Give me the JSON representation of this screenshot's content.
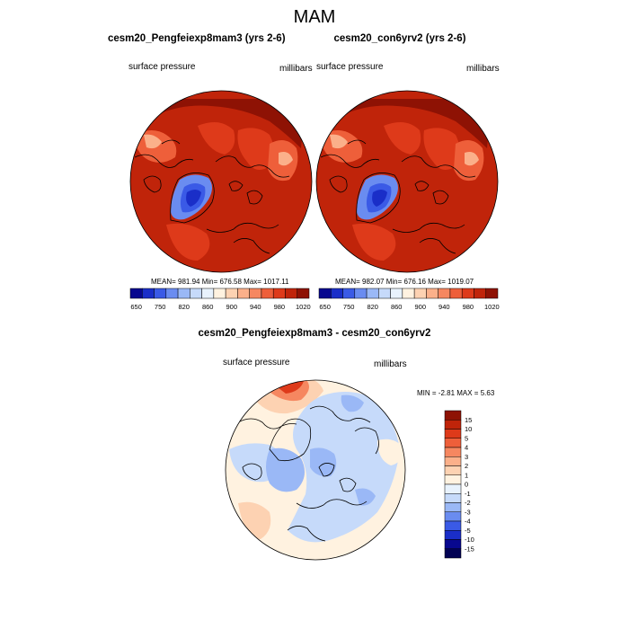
{
  "figure": {
    "title": "MAM",
    "panels": [
      {
        "title": "cesm20_Pengfeiexp8mam3 (yrs 2-6)",
        "left_label": "surface pressure",
        "right_label": "millibars",
        "stats": "MEAN= 981.94  Min= 676.58  Max= 1017.11"
      },
      {
        "title": "cesm20_con6yrv2 (yrs 2-6)",
        "left_label": "surface pressure",
        "right_label": "millibars",
        "stats": "MEAN= 982.07  Min= 676.16  Max= 1019.07"
      },
      {
        "title": "cesm20_Pengfeiexp8mam3 - cesm20_con6yrv2",
        "left_label": "surface pressure",
        "right_label": "millibars",
        "stats": "MIN =  -2.81 MAX =   5.63"
      }
    ]
  },
  "chart_data": [
    {
      "type": "heatmap",
      "projection": "polar-stereographic",
      "title": "cesm20_Pengfeiexp8mam3 (yrs 2-6)",
      "variable": "surface pressure",
      "units": "millibars",
      "mean": 981.94,
      "min": 676.58,
      "max": 1017.11,
      "colorbar": {
        "orientation": "horizontal",
        "tick_labels": [
          "650",
          "750",
          "820",
          "860",
          "900",
          "940",
          "980",
          "1020"
        ],
        "colors": [
          "#08088f",
          "#1a2ec8",
          "#3a5ae6",
          "#6a8cf0",
          "#9ab8f6",
          "#c6dafa",
          "#e8f2fd",
          "#fff2e0",
          "#fdd2b2",
          "#fbb08a",
          "#f68760",
          "#ee5f3a",
          "#de3a1a",
          "#c0240a",
          "#8e1204"
        ]
      }
    },
    {
      "type": "heatmap",
      "projection": "polar-stereographic",
      "title": "cesm20_con6yrv2 (yrs 2-6)",
      "variable": "surface pressure",
      "units": "millibars",
      "mean": 982.07,
      "min": 676.16,
      "max": 1019.07,
      "colorbar": {
        "orientation": "horizontal",
        "tick_labels": [
          "650",
          "750",
          "820",
          "860",
          "900",
          "940",
          "980",
          "1020"
        ],
        "colors": [
          "#08088f",
          "#1a2ec8",
          "#3a5ae6",
          "#6a8cf0",
          "#9ab8f6",
          "#c6dafa",
          "#e8f2fd",
          "#fff2e0",
          "#fdd2b2",
          "#fbb08a",
          "#f68760",
          "#ee5f3a",
          "#de3a1a",
          "#c0240a",
          "#8e1204"
        ]
      }
    },
    {
      "type": "heatmap",
      "projection": "polar-stereographic",
      "title": "cesm20_Pengfeiexp8mam3 - cesm20_con6yrv2",
      "variable": "surface pressure",
      "units": "millibars",
      "min": -2.81,
      "max": 5.63,
      "colorbar": {
        "orientation": "vertical",
        "tick_labels": [
          "15",
          "10",
          "5",
          "4",
          "3",
          "2",
          "1",
          "0",
          "-1",
          "-2",
          "-3",
          "-4",
          "-5",
          "-10",
          "-15"
        ],
        "colors": [
          "#8e1204",
          "#c0240a",
          "#de3a1a",
          "#ee5f3a",
          "#f68760",
          "#fbb08a",
          "#fdd2b2",
          "#fff2e0",
          "#e8f2fd",
          "#c6dafa",
          "#9ab8f6",
          "#6a8cf0",
          "#3a5ae6",
          "#1a2ec8",
          "#08088f",
          "#020254"
        ]
      }
    }
  ]
}
